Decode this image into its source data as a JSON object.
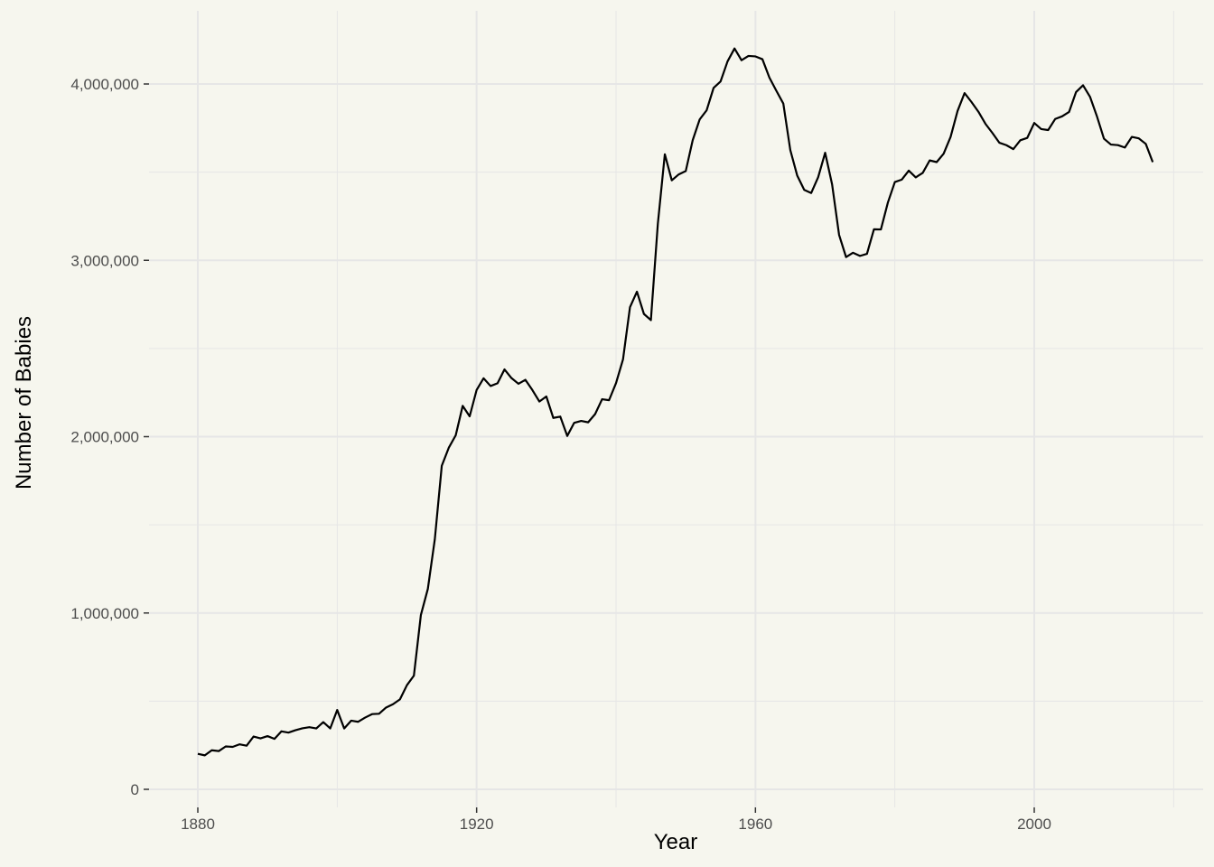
{
  "chart_data": {
    "type": "line",
    "title": "",
    "xlabel": "Year",
    "ylabel": "Number of Babies",
    "xlim": [
      1873,
      2024
    ],
    "ylim": [
      0,
      4400000
    ],
    "grid": true,
    "legend": "none",
    "x_ticks": [
      1880,
      1920,
      1960,
      2000
    ],
    "x_tick_labels": [
      "1880",
      "1920",
      "1960",
      "2000"
    ],
    "y_ticks": [
      0,
      1000000,
      2000000,
      3000000,
      4000000
    ],
    "y_tick_labels": [
      "0",
      "1,000,000",
      "2,000,000",
      "3,000,000",
      "4,000,000"
    ],
    "colors": {
      "background": "#f6f6ee",
      "grid": "#e6e6e6",
      "line": "#000000"
    },
    "series": [
      {
        "x": [
          1880,
          1881,
          1882,
          1883,
          1884,
          1885,
          1886,
          1887,
          1888,
          1889,
          1890,
          1891,
          1892,
          1893,
          1894,
          1895,
          1896,
          1897,
          1898,
          1899,
          1900,
          1901,
          1902,
          1903,
          1904,
          1905,
          1906,
          1907,
          1908,
          1909,
          1910,
          1911,
          1912,
          1913,
          1914,
          1915,
          1916,
          1917,
          1918,
          1919,
          1920,
          1921,
          1922,
          1923,
          1924,
          1925,
          1926,
          1927,
          1928,
          1929,
          1930,
          1931,
          1932,
          1933,
          1934,
          1935,
          1936,
          1937,
          1938,
          1939,
          1940,
          1941,
          1942,
          1943,
          1944,
          1945,
          1946,
          1947,
          1948,
          1949,
          1950,
          1951,
          1952,
          1953,
          1954,
          1955,
          1956,
          1957,
          1958,
          1959,
          1960,
          1961,
          1962,
          1963,
          1964,
          1965,
          1966,
          1967,
          1968,
          1969,
          1970,
          1971,
          1972,
          1973,
          1974,
          1975,
          1976,
          1977,
          1978,
          1979,
          1980,
          1981,
          1982,
          1983,
          1984,
          1985,
          1986,
          1987,
          1988,
          1989,
          1990,
          1991,
          1992,
          1993,
          1994,
          1995,
          1996,
          1997,
          1998,
          1999,
          2000,
          2001,
          2002,
          2003,
          2004,
          2005,
          2006,
          2007,
          2008,
          2009,
          2010,
          2011,
          2012,
          2013,
          2014,
          2015,
          2016,
          2017
        ],
        "values": [
          201500,
          192700,
          221500,
          216900,
          243400,
          240800,
          255300,
          247500,
          299500,
          288900,
          301900,
          286200,
          328900,
          321600,
          335000,
          346000,
          352600,
          345300,
          381000,
          345500,
          450200,
          345100,
          389400,
          382900,
          406800,
          426600,
          428600,
          463700,
          482600,
          510400,
          590600,
          644500,
          988100,
          1136800,
          1417800,
          1834600,
          1936800,
          2007600,
          2174600,
          2115400,
          2265000,
          2331100,
          2287100,
          2303000,
          2381400,
          2332100,
          2299800,
          2322300,
          2264100,
          2199200,
          2227800,
          2106200,
          2113800,
          2004200,
          2078700,
          2089400,
          2081400,
          2128100,
          2212400,
          2206700,
          2303700,
          2438000,
          2733900,
          2822200,
          2695900,
          2660800,
          3208300,
          3601500,
          3453600,
          3487400,
          3506100,
          3681200,
          3799100,
          3850900,
          3978200,
          4014700,
          4128400,
          4201400,
          4134500,
          4159000,
          4156400,
          4140600,
          4036400,
          3961800,
          3888800,
          3625400,
          3480000,
          3399500,
          3381700,
          3471300,
          3609900,
          3430200,
          3144600,
          3018500,
          3043000,
          3025000,
          3036700,
          3175900,
          3175200,
          3327500,
          3443900,
          3457800,
          3508700,
          3470400,
          3495900,
          3566600,
          3557000,
          3604600,
          3700000,
          3847400,
          3948300,
          3897600,
          3842100,
          3774100,
          3722200,
          3666700,
          3653000,
          3630600,
          3680900,
          3694500,
          3778900,
          3744300,
          3738800,
          3801400,
          3816600,
          3841800,
          3954300,
          3992700,
          3927600,
          3816000,
          3689700,
          3656500,
          3653300,
          3639500,
          3700000,
          3691700,
          3660400,
          3557100
        ]
      }
    ]
  }
}
